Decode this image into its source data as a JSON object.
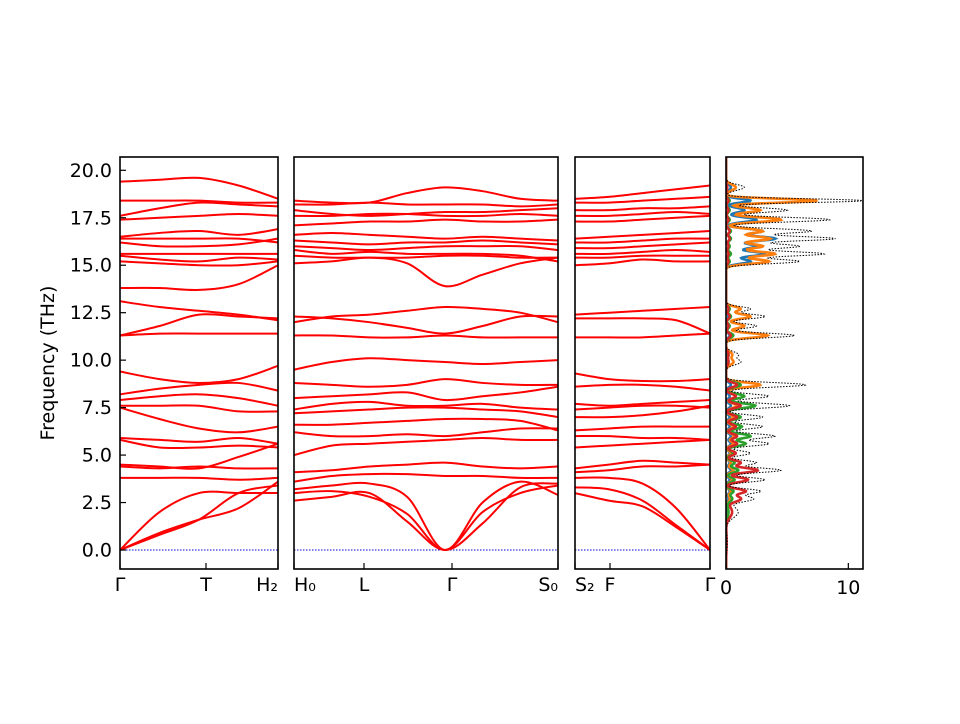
{
  "chart_data": {
    "type": "line",
    "ylabel": "Frequency (THz)",
    "ylim": [
      -1.0,
      20.7
    ],
    "yticks": [
      0.0,
      2.5,
      5.0,
      7.5,
      10.0,
      12.5,
      15.0,
      17.5,
      20.0
    ],
    "ytick_labels": [
      "0.0",
      "2.5",
      "5.0",
      "7.5",
      "10.0",
      "12.5",
      "15.0",
      "17.5",
      "20.0"
    ],
    "colors": {
      "band": "#ff0000",
      "zero_line": "#0000cc",
      "dos_total": "#000000",
      "pdos": [
        "#1f77b4",
        "#ff7f0e",
        "#2ca02c",
        "#d62728"
      ]
    },
    "segments": [
      {
        "labels": [
          "Γ",
          "T",
          "H₂"
        ],
        "bands": [
          [
            0.0,
            0.8,
            1.6,
            3.0,
            3.4
          ],
          [
            0.0,
            0.9,
            1.6,
            2.2,
            3.6
          ],
          [
            0.0,
            2.0,
            3.0,
            3.0,
            3.0
          ],
          [
            3.8,
            3.8,
            3.8,
            3.7,
            3.8
          ],
          [
            4.5,
            4.4,
            4.3,
            4.9,
            5.6
          ],
          [
            4.4,
            4.3,
            4.4,
            4.3,
            4.3
          ],
          [
            5.8,
            5.4,
            5.4,
            5.5,
            5.4
          ],
          [
            5.9,
            5.8,
            5.7,
            5.9,
            5.6
          ],
          [
            7.5,
            6.9,
            6.4,
            6.2,
            6.5
          ],
          [
            7.6,
            7.6,
            7.6,
            7.3,
            7.3
          ],
          [
            7.9,
            8.1,
            8.2,
            8.0,
            7.6
          ],
          [
            8.2,
            8.5,
            8.7,
            8.8,
            8.4
          ],
          [
            9.4,
            9.0,
            8.8,
            9.0,
            9.7
          ],
          [
            11.3,
            11.4,
            11.4,
            11.4,
            11.4
          ],
          [
            11.3,
            11.8,
            12.4,
            12.3,
            12.2
          ],
          [
            13.1,
            12.8,
            12.6,
            12.4,
            12.1
          ],
          [
            13.8,
            13.8,
            13.7,
            14.0,
            15.0
          ],
          [
            15.2,
            15.1,
            15.0,
            15.0,
            15.2
          ],
          [
            15.5,
            15.3,
            15.2,
            15.4,
            15.3
          ],
          [
            15.6,
            15.6,
            15.6,
            15.6,
            15.6
          ],
          [
            16.2,
            16.0,
            16.0,
            16.1,
            16.4
          ],
          [
            16.4,
            16.4,
            16.4,
            16.4,
            16.2
          ],
          [
            16.5,
            16.7,
            16.8,
            16.6,
            16.9
          ],
          [
            17.4,
            17.5,
            17.6,
            17.7,
            17.6
          ],
          [
            17.6,
            18.0,
            18.3,
            18.2,
            18.1
          ],
          [
            18.4,
            18.4,
            18.4,
            18.3,
            18.3
          ],
          [
            19.4,
            19.5,
            19.6,
            19.2,
            18.5
          ]
        ]
      },
      {
        "labels": [
          "H₀",
          "L",
          "Γ",
          "S₀"
        ],
        "bands": [
          [
            2.6,
            2.8,
            3.0,
            1.5,
            0.0,
            1.4,
            3.3,
            3.5
          ],
          [
            3.0,
            3.1,
            2.8,
            1.9,
            0.0,
            2.0,
            3.0,
            3.4
          ],
          [
            3.2,
            3.4,
            3.5,
            2.8,
            0.0,
            2.5,
            3.6,
            2.9
          ],
          [
            3.6,
            3.9,
            4.0,
            4.0,
            3.9,
            3.9,
            3.8,
            3.8
          ],
          [
            4.1,
            4.2,
            4.4,
            4.5,
            4.6,
            4.4,
            4.3,
            4.4
          ],
          [
            5.0,
            5.5,
            5.6,
            5.7,
            5.8,
            5.9,
            5.8,
            5.8
          ],
          [
            6.2,
            6.0,
            6.0,
            6.1,
            6.0,
            6.2,
            6.4,
            6.4
          ],
          [
            6.6,
            6.6,
            6.7,
            6.8,
            6.9,
            6.9,
            6.8,
            6.3
          ],
          [
            7.2,
            7.3,
            7.4,
            7.5,
            7.5,
            7.4,
            7.3,
            7.0
          ],
          [
            7.4,
            7.7,
            7.8,
            7.6,
            7.6,
            7.7,
            7.5,
            7.4
          ],
          [
            8.0,
            8.1,
            8.2,
            8.3,
            7.9,
            8.1,
            8.3,
            8.6
          ],
          [
            8.8,
            8.7,
            8.6,
            8.7,
            9.0,
            8.8,
            8.7,
            8.7
          ],
          [
            9.5,
            9.9,
            10.1,
            10.0,
            9.9,
            9.8,
            9.9,
            10.0
          ],
          [
            11.3,
            11.3,
            11.2,
            11.2,
            11.3,
            11.2,
            11.2,
            11.2
          ],
          [
            12.3,
            12.2,
            12.0,
            11.7,
            11.4,
            11.8,
            12.3,
            12.3
          ],
          [
            12.0,
            12.3,
            12.4,
            12.6,
            12.8,
            12.7,
            12.5,
            12.0
          ],
          [
            15.1,
            15.2,
            15.4,
            15.1,
            13.9,
            14.5,
            15.1,
            15.4
          ],
          [
            15.5,
            15.4,
            15.4,
            15.4,
            15.5,
            15.5,
            15.4,
            15.4
          ],
          [
            15.8,
            15.6,
            15.7,
            15.6,
            15.6,
            15.6,
            15.5,
            15.2
          ],
          [
            16.0,
            15.9,
            15.8,
            15.9,
            16.0,
            16.0,
            16.0,
            15.8
          ],
          [
            16.3,
            16.2,
            16.1,
            16.2,
            16.2,
            16.3,
            16.2,
            16.1
          ],
          [
            16.6,
            16.7,
            16.6,
            16.5,
            16.4,
            16.5,
            16.4,
            16.3
          ],
          [
            17.1,
            17.2,
            17.3,
            17.3,
            17.4,
            17.3,
            17.3,
            17.4
          ],
          [
            17.6,
            17.6,
            17.7,
            17.7,
            17.6,
            17.6,
            17.7,
            17.6
          ],
          [
            17.9,
            17.7,
            17.6,
            17.7,
            17.8,
            17.8,
            17.9,
            18.0
          ],
          [
            18.2,
            18.2,
            18.3,
            18.2,
            18.2,
            18.2,
            18.1,
            18.2
          ],
          [
            18.4,
            18.3,
            18.3,
            18.8,
            19.1,
            18.9,
            18.5,
            18.4
          ]
        ]
      },
      {
        "labels": [
          "S₂",
          "F",
          "Γ"
        ],
        "bands": [
          [
            3.0,
            2.6,
            2.3,
            1.2,
            0.0
          ],
          [
            3.3,
            3.2,
            2.6,
            1.3,
            0.0
          ],
          [
            3.8,
            3.8,
            3.5,
            2.2,
            0.0
          ],
          [
            4.1,
            4.2,
            4.4,
            4.4,
            4.5
          ],
          [
            4.3,
            4.5,
            4.7,
            4.6,
            4.5
          ],
          [
            5.4,
            5.5,
            5.6,
            5.7,
            5.8
          ],
          [
            6.0,
            6.0,
            5.9,
            5.9,
            5.8
          ],
          [
            6.3,
            6.4,
            6.5,
            6.5,
            6.5
          ],
          [
            7.0,
            7.0,
            7.1,
            7.3,
            7.6
          ],
          [
            7.4,
            7.5,
            7.6,
            7.6,
            7.5
          ],
          [
            7.7,
            7.6,
            7.7,
            7.8,
            7.9
          ],
          [
            8.6,
            8.7,
            8.7,
            8.6,
            8.4
          ],
          [
            9.3,
            9.0,
            8.9,
            8.9,
            9.0
          ],
          [
            11.2,
            11.2,
            11.2,
            11.3,
            11.4
          ],
          [
            12.2,
            12.2,
            12.2,
            12.1,
            11.4
          ],
          [
            12.4,
            12.5,
            12.6,
            12.7,
            12.8
          ],
          [
            15.0,
            15.1,
            15.3,
            15.2,
            15.2
          ],
          [
            15.4,
            15.4,
            15.5,
            15.5,
            15.5
          ],
          [
            15.6,
            15.6,
            15.7,
            15.8,
            15.7
          ],
          [
            15.9,
            15.9,
            16.0,
            16.1,
            16.2
          ],
          [
            16.2,
            16.2,
            16.3,
            16.4,
            16.4
          ],
          [
            16.4,
            16.5,
            16.6,
            16.7,
            16.8
          ],
          [
            17.3,
            17.3,
            17.4,
            17.5,
            17.6
          ],
          [
            17.6,
            17.6,
            17.7,
            17.8,
            17.7
          ],
          [
            17.9,
            17.9,
            18.0,
            18.0,
            18.1
          ],
          [
            18.3,
            18.3,
            18.4,
            18.5,
            18.6
          ],
          [
            18.5,
            18.6,
            18.8,
            19.0,
            19.2
          ]
        ]
      }
    ],
    "dos": {
      "xlim": [
        0,
        11.2
      ],
      "xticks": [
        0,
        10
      ],
      "xtick_labels": [
        "0",
        "10"
      ],
      "peaks": [
        {
          "f": 0.4,
          "total": 0.1,
          "w": 0.5,
          "pdos": [
            0.02,
            0.02,
            0.03,
            0.05
          ]
        },
        {
          "f": 2.0,
          "total": 1.0,
          "w": 0.3,
          "pdos": [
            0.1,
            0.2,
            0.2,
            0.5
          ]
        },
        {
          "f": 2.7,
          "total": 2.2,
          "w": 0.15,
          "pdos": [
            0.2,
            0.3,
            0.5,
            1.2
          ]
        },
        {
          "f": 3.1,
          "total": 2.8,
          "w": 0.12,
          "pdos": [
            0.3,
            0.4,
            0.6,
            1.6
          ]
        },
        {
          "f": 3.7,
          "total": 3.2,
          "w": 0.12,
          "pdos": [
            0.3,
            0.5,
            0.7,
            1.8
          ]
        },
        {
          "f": 4.2,
          "total": 4.5,
          "w": 0.12,
          "pdos": [
            0.4,
            0.6,
            1.0,
            2.6
          ]
        },
        {
          "f": 4.6,
          "total": 2.5,
          "w": 0.12,
          "pdos": [
            0.3,
            0.4,
            0.7,
            1.2
          ]
        },
        {
          "f": 5.1,
          "total": 2.0,
          "w": 0.12,
          "pdos": [
            0.3,
            0.4,
            0.6,
            0.8
          ]
        },
        {
          "f": 5.6,
          "total": 3.5,
          "w": 0.12,
          "pdos": [
            0.4,
            0.6,
            1.6,
            0.9
          ]
        },
        {
          "f": 6.0,
          "total": 4.0,
          "w": 0.12,
          "pdos": [
            0.4,
            0.7,
            2.0,
            0.9
          ]
        },
        {
          "f": 6.5,
          "total": 3.0,
          "w": 0.12,
          "pdos": [
            0.3,
            0.6,
            1.3,
            0.8
          ]
        },
        {
          "f": 7.0,
          "total": 3.0,
          "w": 0.12,
          "pdos": [
            0.3,
            0.6,
            1.2,
            0.9
          ]
        },
        {
          "f": 7.6,
          "total": 5.2,
          "w": 0.12,
          "pdos": [
            0.4,
            0.9,
            2.4,
            1.2
          ]
        },
        {
          "f": 8.1,
          "total": 3.5,
          "w": 0.12,
          "pdos": [
            0.3,
            0.8,
            1.5,
            0.8
          ]
        },
        {
          "f": 8.7,
          "total": 6.5,
          "w": 0.12,
          "pdos": [
            0.4,
            2.8,
            1.2,
            0.9
          ]
        },
        {
          "f": 9.9,
          "total": 1.2,
          "w": 0.15,
          "pdos": [
            0.1,
            0.6,
            0.2,
            0.2
          ]
        },
        {
          "f": 10.3,
          "total": 1.0,
          "w": 0.15,
          "pdos": [
            0.1,
            0.5,
            0.2,
            0.2
          ]
        },
        {
          "f": 11.3,
          "total": 5.6,
          "w": 0.12,
          "pdos": [
            0.3,
            3.4,
            0.6,
            0.4
          ]
        },
        {
          "f": 11.8,
          "total": 2.5,
          "w": 0.12,
          "pdos": [
            0.2,
            1.5,
            0.3,
            0.2
          ]
        },
        {
          "f": 12.3,
          "total": 3.2,
          "w": 0.12,
          "pdos": [
            0.2,
            2.0,
            0.4,
            0.3
          ]
        },
        {
          "f": 12.7,
          "total": 2.0,
          "w": 0.12,
          "pdos": [
            0.2,
            1.2,
            0.3,
            0.2
          ]
        },
        {
          "f": 15.2,
          "total": 6.0,
          "w": 0.12,
          "pdos": [
            2.0,
            3.5,
            0.3,
            0.2
          ]
        },
        {
          "f": 15.6,
          "total": 8.0,
          "w": 0.12,
          "pdos": [
            3.2,
            4.0,
            0.4,
            0.2
          ]
        },
        {
          "f": 16.0,
          "total": 6.0,
          "w": 0.12,
          "pdos": [
            2.5,
            3.0,
            0.3,
            0.2
          ]
        },
        {
          "f": 16.4,
          "total": 8.9,
          "w": 0.12,
          "pdos": [
            4.0,
            3.6,
            0.4,
            0.3
          ]
        },
        {
          "f": 16.8,
          "total": 7.0,
          "w": 0.12,
          "pdos": [
            3.0,
            3.0,
            0.4,
            0.3
          ]
        },
        {
          "f": 17.4,
          "total": 8.5,
          "w": 0.12,
          "pdos": [
            2.5,
            4.5,
            0.3,
            0.2
          ]
        },
        {
          "f": 17.9,
          "total": 5.0,
          "w": 0.12,
          "pdos": [
            1.5,
            2.8,
            0.3,
            0.2
          ]
        },
        {
          "f": 18.4,
          "total": 11.2,
          "w": 0.1,
          "pdos": [
            2.0,
            7.5,
            0.3,
            0.2
          ]
        },
        {
          "f": 19.1,
          "total": 1.5,
          "w": 0.15,
          "pdos": [
            0.4,
            0.8,
            0.1,
            0.1
          ]
        }
      ]
    }
  }
}
